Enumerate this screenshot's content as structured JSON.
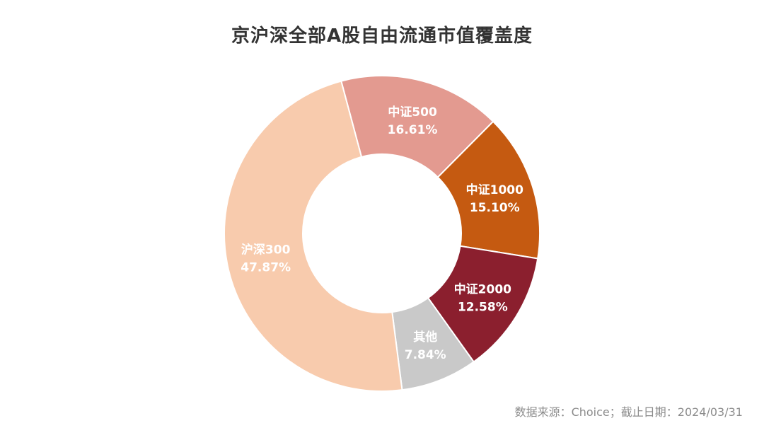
{
  "chart_data": {
    "type": "pie",
    "variant": "donut",
    "title": "京沪深全部A股自由流通市值覆盖度",
    "slices": [
      {
        "label": "中证500",
        "value": 16.61,
        "value_text": "16.61%",
        "color": "#E39A90"
      },
      {
        "label": "中证1000",
        "value": 15.1,
        "value_text": "15.10%",
        "color": "#C55A11"
      },
      {
        "label": "中证2000",
        "value": 12.58,
        "value_text": "12.58%",
        "color": "#8B1F2E"
      },
      {
        "label": "其他",
        "value": 7.84,
        "value_text": "7.84%",
        "color": "#C9C9C9"
      },
      {
        "label": "沪深300",
        "value": 47.87,
        "value_text": "47.87%",
        "color": "#F8CBAD"
      }
    ]
  },
  "source_note": "数据来源：Choice；截止日期：2024/03/31"
}
